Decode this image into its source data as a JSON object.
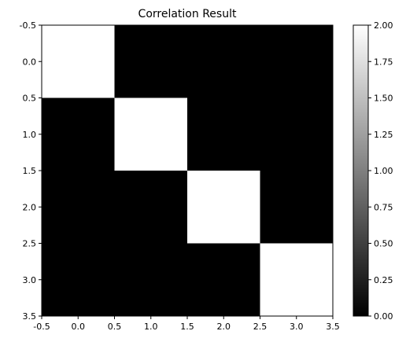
{
  "chart_data": {
    "type": "heatmap",
    "title": "Correlation Result",
    "xlabel": "",
    "ylabel": "",
    "rows": 4,
    "cols": 4,
    "values": [
      [
        2,
        0,
        0,
        0
      ],
      [
        0,
        2,
        0,
        0
      ],
      [
        0,
        0,
        2,
        0
      ],
      [
        0,
        0,
        0,
        2
      ]
    ],
    "xlim": [
      -0.5,
      3.5
    ],
    "ylim": [
      -0.5,
      3.5
    ],
    "y_inverted": true,
    "x_ticks": [
      "-0.5",
      "0.0",
      "0.5",
      "1.0",
      "1.5",
      "2.0",
      "2.5",
      "3.0",
      "3.5"
    ],
    "y_ticks": [
      "-0.5",
      "0.0",
      "0.5",
      "1.0",
      "1.5",
      "2.0",
      "2.5",
      "3.0",
      "3.5"
    ],
    "colormap": "gray",
    "colorbar": {
      "min": 0,
      "max": 2,
      "ticks": [
        "0.00",
        "0.25",
        "0.50",
        "0.75",
        "1.00",
        "1.25",
        "1.50",
        "1.75",
        "2.00"
      ]
    },
    "grid": false
  }
}
